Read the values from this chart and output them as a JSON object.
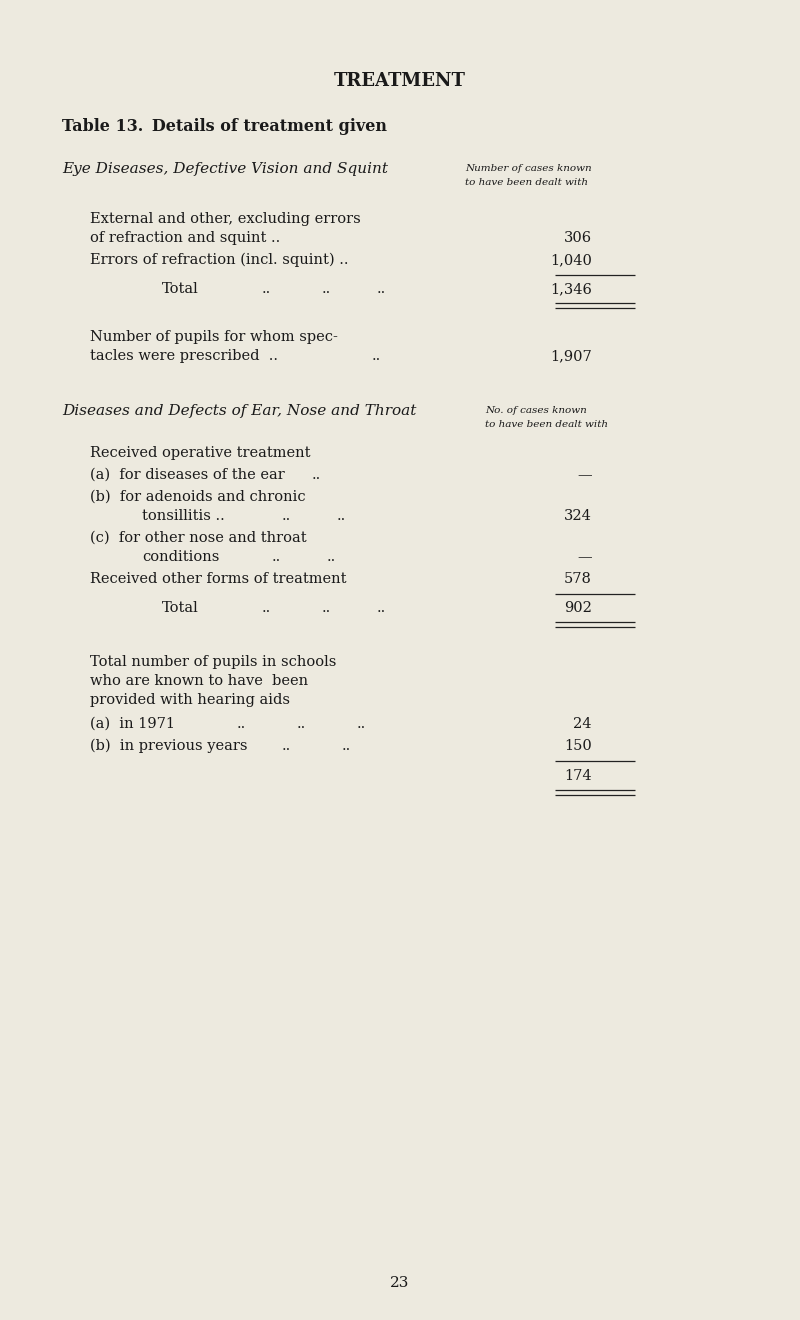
{
  "bg_color": "#edeadf",
  "text_color": "#1a1a1a",
  "page_number": "23",
  "header": "TREATMENT",
  "table_title_bold": "Table 13.",
  "table_title_rest": "   Details of treatment given",
  "section1_title": "Eye Diseases, Defective Vision and Squint",
  "s1_col_hdr1": "Number of cases known",
  "s1_col_hdr2": "to have been dealt with",
  "section2_title": "Diseases and Defects of Ear, Nose and Throat",
  "s2_col_hdr1": "No. of cases known",
  "s2_col_hdr2": "to have been dealt with",
  "fig_w": 8.0,
  "fig_h": 13.2,
  "dpi": 100
}
